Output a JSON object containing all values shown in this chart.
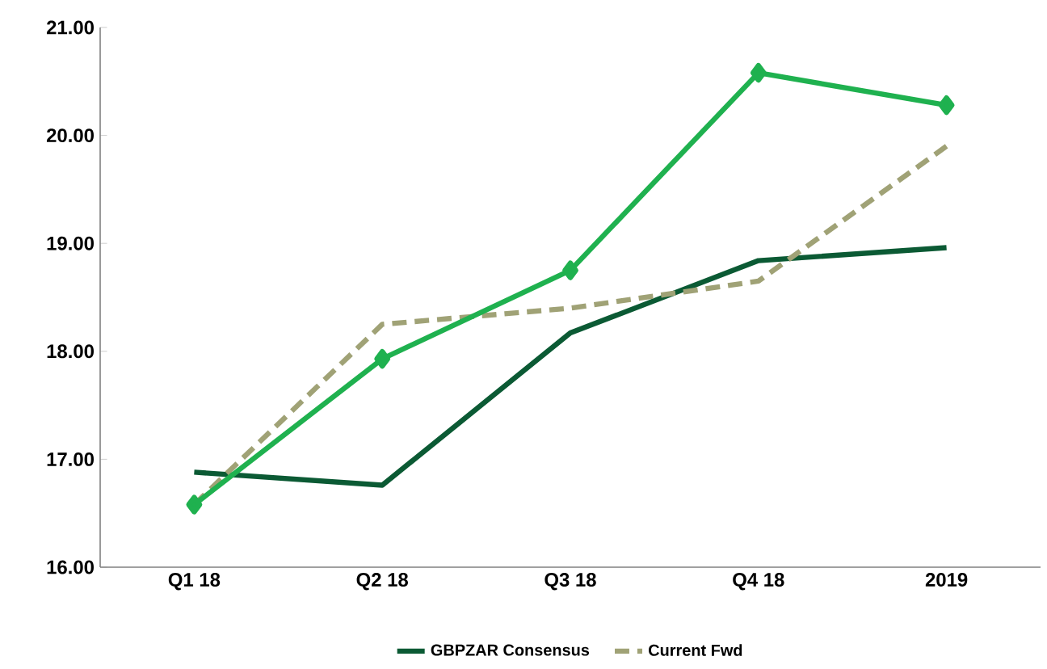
{
  "chart_data": {
    "type": "line",
    "categories": [
      "Q1 18",
      "Q2 18",
      "Q3 18",
      "Q4 18",
      "2019"
    ],
    "series": [
      {
        "name": "GBPZAR Consensus",
        "color": "#0b5a34",
        "line_style": "solid",
        "marker": "none",
        "values": [
          16.88,
          16.76,
          18.17,
          18.84,
          18.96
        ]
      },
      {
        "name": "Current Fwd",
        "color": "#a0a276",
        "line_style": "dashed",
        "marker": "none",
        "values": [
          16.58,
          18.25,
          18.4,
          18.65,
          19.9
        ]
      },
      {
        "color": "#1fb14f",
        "line_style": "solid",
        "marker": "diamond",
        "values": [
          16.58,
          17.93,
          18.75,
          20.58,
          20.28
        ]
      }
    ],
    "ylim": [
      16,
      21
    ],
    "yticks": [
      {
        "value": 16,
        "label": "16.00"
      },
      {
        "value": 17,
        "label": "17.00"
      },
      {
        "value": 18,
        "label": "18.00"
      },
      {
        "value": 19,
        "label": "19.00"
      },
      {
        "value": 20,
        "label": "20.00"
      },
      {
        "value": 21,
        "label": "21.00"
      }
    ],
    "grid": false,
    "legend": "bottom"
  }
}
